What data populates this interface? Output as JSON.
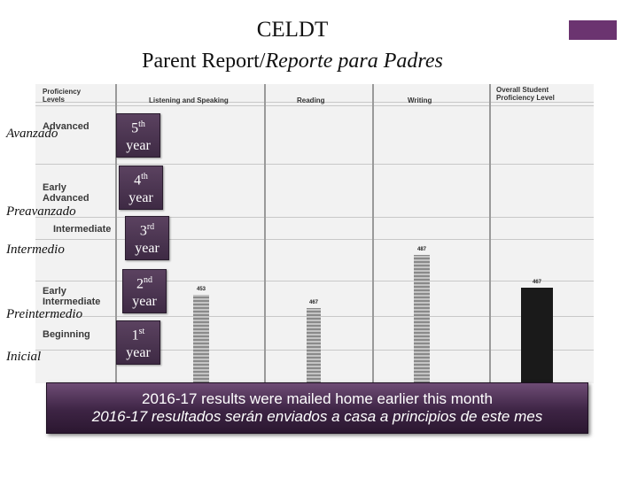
{
  "title": {
    "line1": "CELDT",
    "line2_main": "Parent Report/",
    "line2_italic": "Reporte para Padres"
  },
  "report": {
    "header_levels": "Proficiency Levels",
    "columns": [
      "Listening and Speaking",
      "Reading",
      "Writing",
      "Overall Student Proficiency Level"
    ],
    "levels": [
      "Advanced",
      "Early Advanced",
      "Intermediate",
      "Early Intermediate",
      "Beginning"
    ],
    "bars": [
      {
        "label": "453",
        "value": 453,
        "style": "hatched"
      },
      {
        "label": "467",
        "value": 467,
        "style": "hatched"
      },
      {
        "label": "487",
        "value": 487,
        "style": "hatched"
      },
      {
        "label": "467",
        "value": 467,
        "style": "solid"
      }
    ]
  },
  "spanish_levels": [
    "Avanzado",
    "Preavanzado",
    "Intermedio",
    "Preintermedio",
    "Inicial"
  ],
  "years": [
    {
      "num": "5",
      "sup": "th",
      "word": "year"
    },
    {
      "num": "4",
      "sup": "th",
      "word": "year"
    },
    {
      "num": "3",
      "sup": "rd",
      "word": "year"
    },
    {
      "num": "2",
      "sup": "nd",
      "word": "year"
    },
    {
      "num": "1",
      "sup": "st",
      "word": "year"
    }
  ],
  "banner": {
    "line1": "2016-17 results were mailed home earlier this month",
    "line2": "2016-17 resultados serán enviados a casa a principios de este mes"
  },
  "colors": {
    "accent": "#6b3470",
    "box": "#4a3350"
  }
}
